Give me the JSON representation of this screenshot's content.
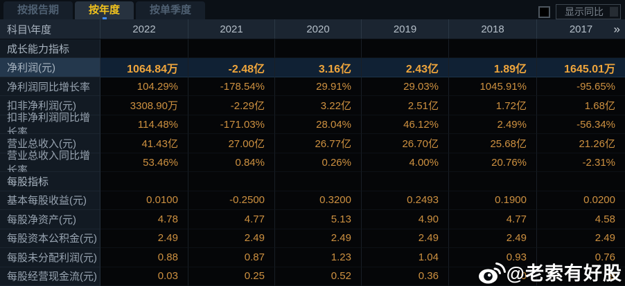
{
  "tabs": {
    "items": [
      {
        "id": "report-period",
        "label": "按报告期",
        "active": false
      },
      {
        "id": "annual",
        "label": "按年度",
        "active": true
      },
      {
        "id": "quarterly",
        "label": "按单季度",
        "active": false
      }
    ]
  },
  "controls": {
    "show_yoy_label": "显示同比",
    "checkbox_checked": false
  },
  "table": {
    "corner_label": "科目\\年度",
    "years": [
      "2022",
      "2021",
      "2020",
      "2019",
      "2018",
      "2017"
    ],
    "more_icon": "»",
    "rows": [
      {
        "type": "section",
        "label": "成长能力指标"
      },
      {
        "type": "data",
        "highlight": true,
        "label": "净利润(元)",
        "values": [
          "1064.84万",
          "-2.48亿",
          "3.16亿",
          "2.43亿",
          "1.89亿",
          "1645.01万"
        ]
      },
      {
        "type": "data",
        "highlight": false,
        "label": "净利润同比增长率",
        "values": [
          "104.29%",
          "-178.54%",
          "29.91%",
          "29.03%",
          "1045.91%",
          "-95.65%"
        ]
      },
      {
        "type": "data",
        "highlight": false,
        "label": "扣非净利润(元)",
        "values": [
          "3308.90万",
          "-2.29亿",
          "3.22亿",
          "2.51亿",
          "1.72亿",
          "1.68亿"
        ]
      },
      {
        "type": "data",
        "highlight": false,
        "label": "扣非净利润同比增长率",
        "values": [
          "114.48%",
          "-171.03%",
          "28.04%",
          "46.12%",
          "2.49%",
          "-56.34%"
        ]
      },
      {
        "type": "data",
        "highlight": false,
        "label": "营业总收入(元)",
        "values": [
          "41.43亿",
          "27.00亿",
          "26.77亿",
          "26.70亿",
          "25.68亿",
          "21.26亿"
        ]
      },
      {
        "type": "data",
        "highlight": false,
        "label": "营业总收入同比增长率",
        "values": [
          "53.46%",
          "0.84%",
          "0.26%",
          "4.00%",
          "20.76%",
          "-2.31%"
        ]
      },
      {
        "type": "section",
        "label": "每股指标"
      },
      {
        "type": "data",
        "highlight": false,
        "label": "基本每股收益(元)",
        "values": [
          "0.0100",
          "-0.2500",
          "0.3200",
          "0.2493",
          "0.1900",
          "0.0200"
        ]
      },
      {
        "type": "data",
        "highlight": false,
        "label": "每股净资产(元)",
        "values": [
          "4.78",
          "4.77",
          "5.13",
          "4.90",
          "4.77",
          "4.58"
        ]
      },
      {
        "type": "data",
        "highlight": false,
        "label": "每股资本公积金(元)",
        "values": [
          "2.49",
          "2.49",
          "2.49",
          "2.49",
          "2.49",
          "2.49"
        ]
      },
      {
        "type": "data",
        "highlight": false,
        "label": "每股未分配利润(元)",
        "values": [
          "0.88",
          "0.87",
          "1.23",
          "1.04",
          "0.93",
          "0.76"
        ]
      },
      {
        "type": "data",
        "highlight": false,
        "label": "每股经营现金流(元)",
        "values": [
          "0.03",
          "0.25",
          "0.52",
          "0.36",
          "0",
          "9"
        ],
        "note": "2018/2017 cells obscured by watermark; only fragments visible"
      }
    ]
  },
  "watermark": {
    "text": "@老索有好股",
    "icon": "weibo-icon"
  },
  "colors": {
    "tab_active_text": "#f2c31d",
    "value_orange": "#ce9140",
    "highlight_value_orange": "#f0a63c",
    "highlight_row_bg": "#102134",
    "header_bg": "#1b2531",
    "label_column_bg": "#121a23",
    "watermark_text": "#ffffff"
  }
}
